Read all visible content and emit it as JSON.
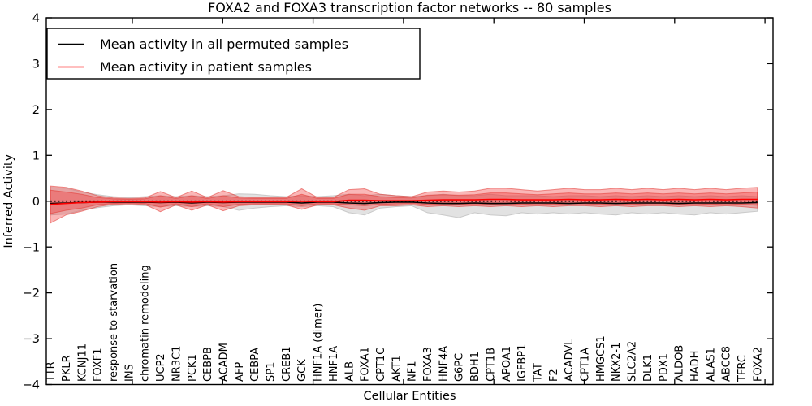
{
  "chart_data": {
    "type": "line",
    "title": "FOXA2 and FOXA3 transcription factor networks -- 80 samples",
    "xlabel": "Cellular Entities",
    "ylabel": "Inferred Activity",
    "ylim": [
      -4,
      4
    ],
    "ytick_labels": [
      "4",
      "3",
      "2",
      "1",
      "0",
      "−1",
      "−2",
      "−3",
      "−4"
    ],
    "ytick_values": [
      4,
      3,
      2,
      1,
      0,
      -1,
      -2,
      -3,
      -4
    ],
    "grid": false,
    "legend_position": "upper left",
    "legend": [
      {
        "label": "Mean activity in all permuted samples",
        "color": "#000000"
      },
      {
        "label": "Mean activity in patient samples",
        "color": "#ff0000"
      }
    ],
    "baseline": {
      "value": 0,
      "style": "dotted",
      "color": "#000000"
    },
    "colors": {
      "permuted_band_fill": "#e2e2e2",
      "permuted_band_edge": "#c9c9c9",
      "patient_band_fill": "rgba(240,50,50,0.35)",
      "patient_band_edge": "rgba(225,55,50,0.55)",
      "permuted_mean_line": "#000000",
      "patient_mean_line": "#ff0000"
    },
    "categories": [
      "TTR",
      "PKLR",
      "KCNJ11",
      "FOXF1",
      "response to starvation",
      "INS",
      "chromatin remodeling",
      "UCP2",
      "NR3C1",
      "PCK1",
      "CEBPB",
      "ACADM",
      "AFP",
      "CEBPA",
      "SP1",
      "CREB1",
      "GCK",
      "HNF1A (dimer)",
      "HNF1A",
      "ALB",
      "FOXA1",
      "CPT1C",
      "AKT1",
      "NF1",
      "FOXA3",
      "HNF4A",
      "G6PC",
      "BDH1",
      "CPT1B",
      "APOA1",
      "IGFBP1",
      "TAT",
      "F2",
      "ACADVL",
      "CPT1A",
      "HMGCS1",
      "NKX2-1",
      "SLC2A2",
      "DLK1",
      "PDX1",
      "ALDOB",
      "HADH",
      "ALAS1",
      "ABCC8",
      "TFRC",
      "FOXA2"
    ],
    "series": [
      {
        "name": "Mean activity in all permuted samples",
        "color": "#000000",
        "style": "solid",
        "values": [
          -0.05,
          -0.04,
          -0.03,
          -0.02,
          -0.02,
          -0.02,
          -0.02,
          -0.03,
          -0.02,
          -0.04,
          -0.02,
          -0.03,
          -0.02,
          -0.02,
          -0.02,
          -0.02,
          -0.04,
          -0.02,
          -0.02,
          -0.04,
          -0.05,
          -0.03,
          -0.02,
          -0.02,
          -0.04,
          -0.05,
          -0.05,
          -0.04,
          -0.05,
          -0.05,
          -0.04,
          -0.04,
          -0.04,
          -0.05,
          -0.04,
          -0.04,
          -0.05,
          -0.04,
          -0.04,
          -0.04,
          -0.05,
          -0.04,
          -0.04,
          -0.04,
          -0.04,
          -0.03
        ]
      },
      {
        "name": "Mean activity in patient samples",
        "color": "#ff0000",
        "style": "solid",
        "values": [
          -0.07,
          -0.05,
          -0.03,
          -0.02,
          -0.01,
          -0.01,
          -0.01,
          -0.02,
          -0.01,
          -0.02,
          -0.01,
          -0.02,
          -0.01,
          -0.01,
          -0.01,
          -0.01,
          0.0,
          -0.01,
          -0.01,
          0.02,
          0.02,
          0.01,
          0.01,
          0.01,
          0.02,
          0.03,
          0.03,
          0.03,
          0.04,
          0.04,
          0.03,
          0.03,
          0.03,
          0.04,
          0.03,
          0.03,
          0.04,
          0.03,
          0.04,
          0.03,
          0.04,
          0.03,
          0.04,
          0.03,
          0.04,
          0.04
        ]
      }
    ],
    "bands": [
      {
        "name": "permuted-samples-range",
        "role": "gray",
        "hi": [
          0.3,
          0.28,
          0.2,
          0.14,
          0.1,
          0.08,
          0.1,
          0.12,
          0.1,
          0.12,
          0.1,
          0.12,
          0.16,
          0.15,
          0.12,
          0.1,
          0.12,
          0.1,
          0.12,
          0.15,
          0.12,
          0.15,
          0.12,
          0.1,
          0.12,
          0.15,
          0.12,
          0.12,
          0.15,
          0.12,
          0.12,
          0.12,
          0.1,
          0.12,
          0.12,
          0.1,
          0.12,
          0.1,
          0.12,
          0.1,
          0.12,
          0.1,
          0.12,
          0.1,
          0.12,
          0.1
        ],
        "lo": [
          -0.3,
          -0.28,
          -0.2,
          -0.14,
          -0.1,
          -0.08,
          -0.1,
          -0.12,
          -0.1,
          -0.12,
          -0.1,
          -0.12,
          -0.2,
          -0.15,
          -0.12,
          -0.1,
          -0.12,
          -0.1,
          -0.12,
          -0.25,
          -0.3,
          -0.15,
          -0.12,
          -0.1,
          -0.25,
          -0.3,
          -0.36,
          -0.25,
          -0.3,
          -0.32,
          -0.25,
          -0.28,
          -0.25,
          -0.28,
          -0.25,
          -0.28,
          -0.3,
          -0.25,
          -0.28,
          -0.25,
          -0.28,
          -0.3,
          -0.25,
          -0.28,
          -0.25,
          -0.22
        ]
      },
      {
        "name": "patient-samples-range-outer",
        "role": "red",
        "hi": [
          0.33,
          0.3,
          0.22,
          0.12,
          0.07,
          0.06,
          0.07,
          0.21,
          0.08,
          0.22,
          0.08,
          0.23,
          0.1,
          0.08,
          0.08,
          0.08,
          0.27,
          0.08,
          0.08,
          0.25,
          0.27,
          0.15,
          0.12,
          0.1,
          0.2,
          0.22,
          0.2,
          0.22,
          0.28,
          0.28,
          0.25,
          0.22,
          0.25,
          0.28,
          0.25,
          0.25,
          0.28,
          0.25,
          0.28,
          0.25,
          0.28,
          0.25,
          0.28,
          0.25,
          0.28,
          0.3
        ],
        "lo": [
          -0.48,
          -0.3,
          -0.22,
          -0.12,
          -0.07,
          -0.06,
          -0.07,
          -0.23,
          -0.08,
          -0.2,
          -0.08,
          -0.21,
          -0.1,
          -0.08,
          -0.08,
          -0.08,
          -0.18,
          -0.08,
          -0.08,
          -0.15,
          -0.2,
          -0.1,
          -0.1,
          -0.08,
          -0.12,
          -0.1,
          -0.12,
          -0.1,
          -0.12,
          -0.1,
          -0.12,
          -0.1,
          -0.12,
          -0.1,
          -0.1,
          -0.12,
          -0.1,
          -0.12,
          -0.1,
          -0.1,
          -0.12,
          -0.1,
          -0.12,
          -0.1,
          -0.12,
          -0.15
        ]
      },
      {
        "name": "patient-samples-range-inner",
        "role": "red",
        "hi": [
          0.24,
          0.2,
          0.15,
          0.08,
          0.05,
          0.04,
          0.05,
          0.12,
          0.06,
          0.12,
          0.06,
          0.12,
          0.07,
          0.06,
          0.06,
          0.06,
          0.15,
          0.06,
          0.06,
          0.15,
          0.15,
          0.1,
          0.08,
          0.07,
          0.13,
          0.14,
          0.13,
          0.14,
          0.18,
          0.18,
          0.16,
          0.14,
          0.16,
          0.18,
          0.16,
          0.16,
          0.18,
          0.16,
          0.18,
          0.16,
          0.18,
          0.16,
          0.18,
          0.16,
          0.18,
          0.2
        ],
        "lo": [
          -0.27,
          -0.2,
          -0.15,
          -0.08,
          -0.05,
          -0.04,
          -0.05,
          -0.13,
          -0.06,
          -0.12,
          -0.06,
          -0.12,
          -0.07,
          -0.06,
          -0.06,
          -0.06,
          -0.1,
          -0.06,
          -0.06,
          -0.08,
          -0.1,
          -0.07,
          -0.06,
          -0.05,
          -0.07,
          -0.06,
          -0.07,
          -0.06,
          -0.07,
          -0.06,
          -0.07,
          -0.06,
          -0.07,
          -0.06,
          -0.06,
          -0.07,
          -0.06,
          -0.07,
          -0.06,
          -0.06,
          -0.07,
          -0.06,
          -0.07,
          -0.06,
          -0.07,
          -0.09
        ]
      }
    ]
  }
}
